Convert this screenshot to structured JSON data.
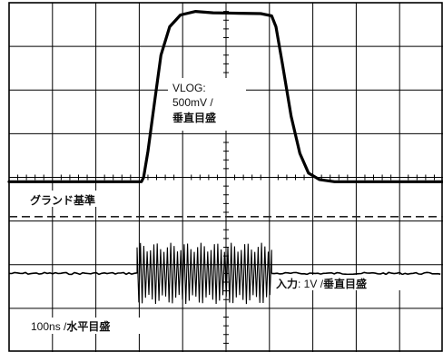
{
  "chart_data": {
    "type": "line",
    "title": "",
    "xlabel": "",
    "ylabel": "",
    "grid": true,
    "divisions": {
      "x": 10,
      "y": 8
    },
    "series": [
      {
        "name": "VLOG",
        "values_div": [
          [
            0.0,
            3.9
          ],
          [
            3.0,
            3.9
          ],
          [
            3.05,
            3.9
          ],
          [
            3.1,
            4.0
          ],
          [
            3.2,
            4.6
          ],
          [
            3.35,
            5.7
          ],
          [
            3.5,
            6.8
          ],
          [
            3.7,
            7.45
          ],
          [
            3.95,
            7.72
          ],
          [
            4.3,
            7.8
          ],
          [
            4.7,
            7.77
          ],
          [
            5.3,
            7.76
          ],
          [
            5.8,
            7.75
          ],
          [
            6.05,
            7.7
          ],
          [
            6.15,
            7.45
          ],
          [
            6.3,
            6.6
          ],
          [
            6.5,
            5.4
          ],
          [
            6.7,
            4.55
          ],
          [
            6.9,
            4.1
          ],
          [
            7.15,
            3.95
          ],
          [
            7.5,
            3.9
          ],
          [
            10.0,
            3.9
          ]
        ]
      },
      {
        "name": "入力",
        "baseline_div": 1.8,
        "burst_start_div": 2.95,
        "burst_end_div": 6.05,
        "burst_amplitude_div": 0.7,
        "burst_cycles": 40
      }
    ],
    "ground_reference_div": 3.1,
    "annotations": {
      "vlog_line1": "VLOG:",
      "vlog_line2": "500mV /",
      "vlog_line3": "垂直目盛",
      "ground": "グランド基準",
      "input_prefix": "入力",
      "input_scale": ": 1V /",
      "input_unit": "垂直目盛",
      "time_scale": "100ns /",
      "time_unit": "水平目盛"
    }
  }
}
